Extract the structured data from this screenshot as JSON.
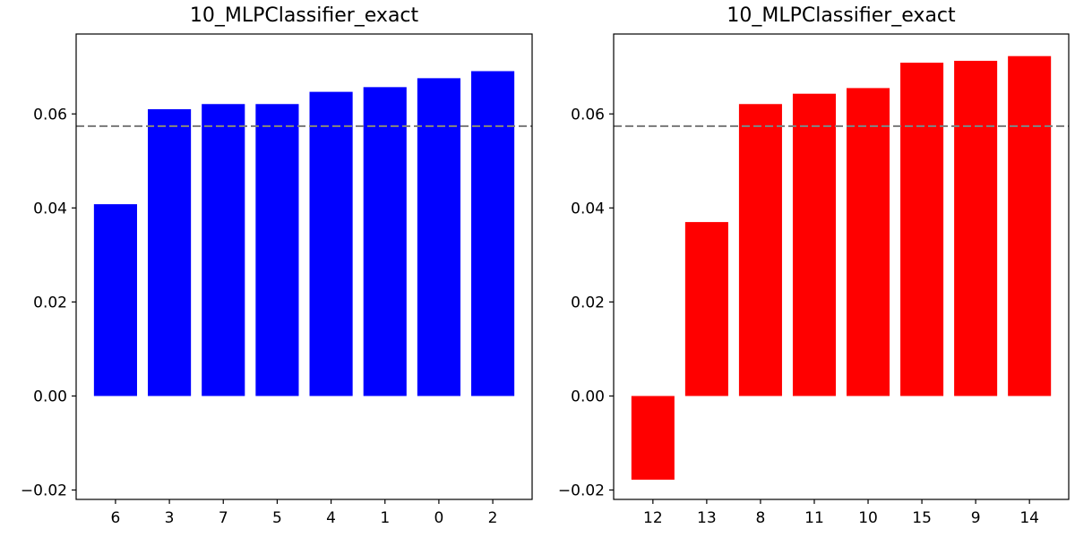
{
  "chart_data": [
    {
      "type": "bar",
      "title": "10_MLPClassifier_exact",
      "xlabel": "",
      "ylabel": "",
      "categories": [
        "6",
        "3",
        "7",
        "5",
        "4",
        "1",
        "0",
        "2"
      ],
      "values": [
        0.0408,
        0.061,
        0.0621,
        0.0621,
        0.0647,
        0.0657,
        0.0676,
        0.0691
      ],
      "ylim": [
        -0.022,
        0.077
      ],
      "yticks": [
        -0.02,
        0.0,
        0.02,
        0.04,
        0.06
      ],
      "ytick_labels": [
        "−0.02",
        "0.00",
        "0.02",
        "0.04",
        "0.06"
      ],
      "reference_line": 0.0574,
      "bar_color": "#0000ff",
      "reference_line_color": "#808080",
      "grid": false
    },
    {
      "type": "bar",
      "title": "10_MLPClassifier_exact",
      "xlabel": "",
      "ylabel": "",
      "categories": [
        "12",
        "13",
        "8",
        "11",
        "10",
        "15",
        "9",
        "14"
      ],
      "values": [
        -0.0178,
        0.037,
        0.0621,
        0.0643,
        0.0655,
        0.0709,
        0.0713,
        0.0723
      ],
      "ylim": [
        -0.022,
        0.077
      ],
      "yticks": [
        -0.02,
        0.0,
        0.02,
        0.04,
        0.06
      ],
      "ytick_labels": [
        "−0.02",
        "0.00",
        "0.02",
        "0.04",
        "0.06"
      ],
      "reference_line": 0.0574,
      "bar_color": "#ff0000",
      "reference_line_color": "#808080",
      "grid": false
    }
  ]
}
